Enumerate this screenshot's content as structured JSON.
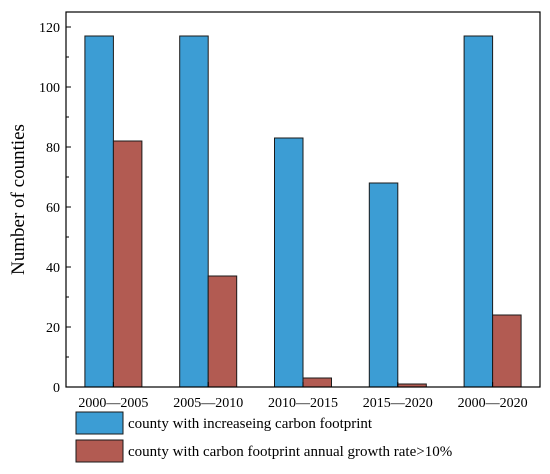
{
  "chart_data": {
    "type": "bar",
    "categories": [
      "2000—2005",
      "2005—2010",
      "2010—2015",
      "2015—2020",
      "2000—2020"
    ],
    "series": [
      {
        "name": "county with increaseing carbon footprint",
        "values": [
          117,
          117,
          83,
          68,
          117
        ],
        "color": "#3c9dd4"
      },
      {
        "name": "county with carbon footprint annual growth rate>10%",
        "values": [
          82,
          37,
          3,
          1,
          24
        ],
        "color": "#b25b52"
      }
    ],
    "title": "",
    "xlabel": "",
    "ylabel": "Number of  counties",
    "ylim": [
      0,
      125
    ],
    "yticks": [
      0,
      20,
      40,
      60,
      80,
      100,
      120
    ],
    "grid": false,
    "legend_position": "bottom"
  }
}
